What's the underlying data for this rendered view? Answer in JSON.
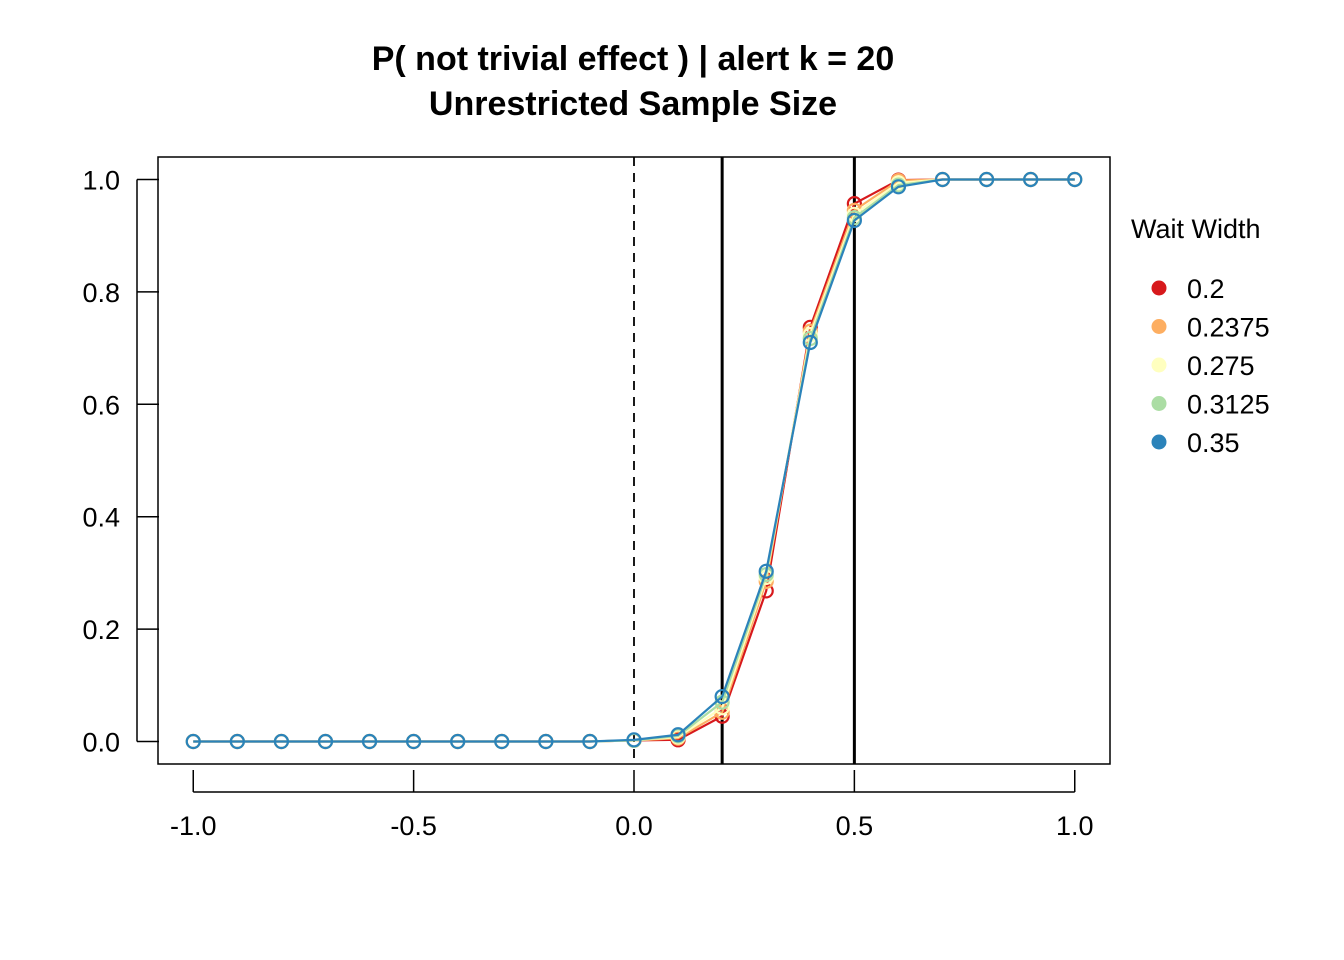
{
  "chart_data": {
    "type": "line",
    "title": "P( not trivial effect ) | alert k = 20",
    "subtitle": "Unrestricted Sample Size",
    "xlabel": "",
    "ylabel": "",
    "xlim": [
      -1.08,
      1.08
    ],
    "ylim": [
      -0.04,
      1.04
    ],
    "x_ticks": [
      -1.0,
      -0.5,
      0.0,
      0.5,
      1.0
    ],
    "x_tick_labels": [
      "-1.0",
      "-0.5",
      "0.0",
      "0.5",
      "1.0"
    ],
    "y_ticks": [
      0.0,
      0.2,
      0.4,
      0.6,
      0.8,
      1.0
    ],
    "y_tick_labels": [
      "0.0",
      "0.2",
      "0.4",
      "0.6",
      "0.8",
      "1.0"
    ],
    "grid": false,
    "legend": {
      "title": "Wait Width",
      "position": "right"
    },
    "reference_lines": [
      {
        "x": 0.0,
        "style": "dashed"
      },
      {
        "x": 0.2,
        "style": "solid"
      },
      {
        "x": 0.5,
        "style": "solid"
      }
    ],
    "x": [
      -1.0,
      -0.9,
      -0.8,
      -0.7,
      -0.6,
      -0.5,
      -0.4,
      -0.3,
      -0.2,
      -0.1,
      0.0,
      0.1,
      0.2,
      0.3,
      0.4,
      0.5,
      0.6,
      0.7,
      0.8,
      0.9,
      1.0
    ],
    "series": [
      {
        "name": "0.2",
        "color": "#d7191c",
        "values": [
          0,
          0,
          0,
          0,
          0,
          0,
          0,
          0,
          0,
          0,
          0.002,
          0.003,
          0.045,
          0.268,
          0.737,
          0.957,
          0.999,
          1.0,
          1.0,
          1.0,
          1.0
        ]
      },
      {
        "name": "0.2375",
        "color": "#fdae61",
        "values": [
          0,
          0,
          0,
          0,
          0,
          0,
          0,
          0,
          0,
          0,
          0.002,
          0.006,
          0.052,
          0.285,
          0.73,
          0.945,
          0.998,
          1.0,
          1.0,
          1.0,
          1.0
        ]
      },
      {
        "name": "0.275",
        "color": "#ffffbf",
        "values": [
          0,
          0,
          0,
          0,
          0,
          0,
          0,
          0,
          0,
          0,
          0.002,
          0.008,
          0.06,
          0.292,
          0.724,
          0.938,
          0.994,
          1.0,
          1.0,
          1.0,
          1.0
        ]
      },
      {
        "name": "0.3125",
        "color": "#abdda4",
        "values": [
          0,
          0,
          0,
          0,
          0,
          0,
          0,
          0,
          0,
          0,
          0.002,
          0.01,
          0.07,
          0.297,
          0.717,
          0.932,
          0.99,
          1.0,
          1.0,
          1.0,
          1.0
        ]
      },
      {
        "name": "0.35",
        "color": "#2b83ba",
        "values": [
          0,
          0,
          0,
          0,
          0,
          0,
          0,
          0,
          0,
          0,
          0.003,
          0.012,
          0.08,
          0.303,
          0.71,
          0.927,
          0.987,
          1.0,
          1.0,
          1.0,
          1.0
        ]
      }
    ]
  }
}
